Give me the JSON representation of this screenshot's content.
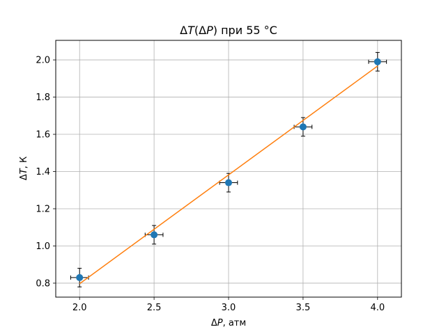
{
  "chart_data": {
    "type": "scatter",
    "title_parts": {
      "delta1": "Δ",
      "var1": "T",
      "paren_open": "(",
      "delta2": "Δ",
      "var2": "P",
      "rest": ") при 55 °C"
    },
    "xlabel_parts": {
      "delta": "Δ",
      "var": "P",
      "rest": ", атм"
    },
    "ylabel_parts": {
      "delta": "Δ",
      "var": "T",
      "rest": ", К"
    },
    "xlim": [
      1.84,
      4.16
    ],
    "ylim": [
      0.725,
      2.105
    ],
    "xticks": [
      "2.0",
      "2.5",
      "3.0",
      "3.5",
      "4.0"
    ],
    "yticks": [
      "0.8",
      "1.0",
      "1.2",
      "1.4",
      "1.6",
      "1.8",
      "2.0"
    ],
    "grid": true,
    "series": [
      {
        "kind": "points-with-errorbars",
        "x": [
          2.0,
          2.5,
          3.0,
          3.5,
          4.0
        ],
        "y": [
          0.83,
          1.06,
          1.34,
          1.64,
          1.99
        ],
        "xerr": 0.06,
        "yerr": 0.05,
        "color": "#1f77b4",
        "errcolor": "#000000"
      },
      {
        "kind": "fit-line",
        "x": [
          2.0,
          4.0
        ],
        "y": [
          0.797,
          1.967
        ],
        "color": "#ff7f0e"
      }
    ]
  }
}
